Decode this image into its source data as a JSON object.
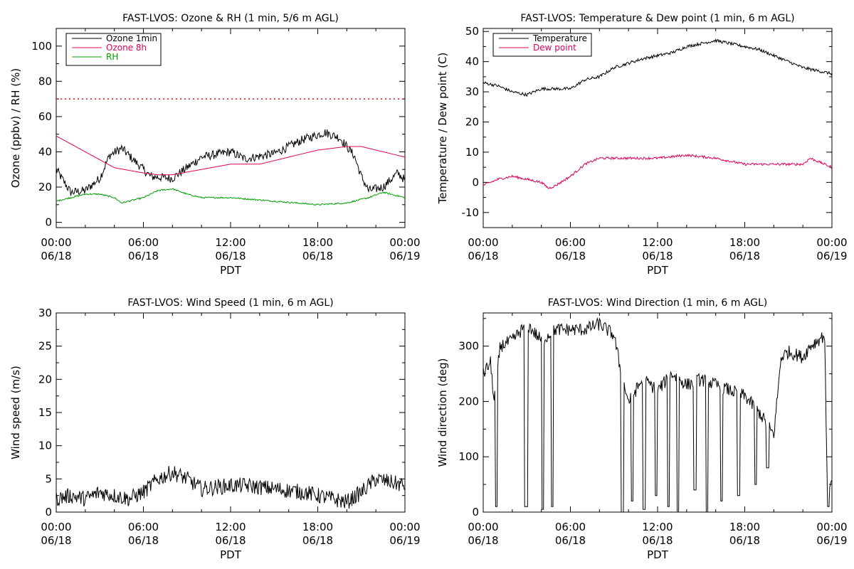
{
  "chart_data": [
    {
      "type": "line",
      "title": "FAST-LVOS: Ozone & RH (1 min, 5/6 m AGL)",
      "xlabel": "PDT",
      "ylabel": "Ozone (ppbv) / RH (%)",
      "x_ticks": [
        {
          "time": "00:00",
          "date": "06/18"
        },
        {
          "time": "06:00",
          "date": "06/18"
        },
        {
          "time": "12:00",
          "date": "06/18"
        },
        {
          "time": "18:00",
          "date": "06/18"
        },
        {
          "time": "00:00",
          "date": "06/19"
        }
      ],
      "xlim": [
        "06/18 00:00",
        "06/19 00:00"
      ],
      "ylim": [
        -3,
        110
      ],
      "y_ticks": [
        0,
        20,
        40,
        60,
        80,
        100
      ],
      "legend_position": "top-left",
      "reference_lines": [
        {
          "y": 70,
          "color": "#ff0000",
          "style": "dotted"
        }
      ],
      "series": [
        {
          "name": "Ozone 1min",
          "color": "#000000",
          "noise": 2.5,
          "points": [
            [
              "06/18 00:00",
              30
            ],
            [
              "06/18 01:00",
              17
            ],
            [
              "06/18 02:00",
              18
            ],
            [
              "06/18 03:00",
              25
            ],
            [
              "06/18 03:40",
              38
            ],
            [
              "06/18 04:30",
              42
            ],
            [
              "06/18 05:30",
              34
            ],
            [
              "06/18 06:30",
              26
            ],
            [
              "06/18 08:00",
              25
            ],
            [
              "06/18 09:00",
              31
            ],
            [
              "06/18 10:00",
              37
            ],
            [
              "06/18 12:00",
              40
            ],
            [
              "06/18 13:00",
              36
            ],
            [
              "06/18 15:00",
              39
            ],
            [
              "06/18 17:00",
              47
            ],
            [
              "06/18 18:30",
              51
            ],
            [
              "06/18 19:30",
              48
            ],
            [
              "06/18 20:30",
              38
            ],
            [
              "06/18 21:00",
              26
            ],
            [
              "06/18 21:30",
              18
            ],
            [
              "06/18 22:30",
              20
            ],
            [
              "06/18 23:30",
              28
            ],
            [
              "06/19 00:00",
              24
            ]
          ]
        },
        {
          "name": "Ozone 8h",
          "color": "#e0005a",
          "noise": 0,
          "points": [
            [
              "06/18 00:00",
              49
            ],
            [
              "06/18 02:00",
              40
            ],
            [
              "06/18 04:00",
              31
            ],
            [
              "06/18 06:00",
              28
            ],
            [
              "06/18 07:00",
              27
            ],
            [
              "06/18 08:00",
              27
            ],
            [
              "06/18 10:00",
              30
            ],
            [
              "06/18 12:00",
              33
            ],
            [
              "06/18 14:00",
              33
            ],
            [
              "06/18 16:00",
              37
            ],
            [
              "06/18 18:00",
              41
            ],
            [
              "06/18 20:00",
              43
            ],
            [
              "06/18 21:00",
              43
            ],
            [
              "06/18 22:00",
              41
            ],
            [
              "06/18 23:00",
              39
            ],
            [
              "06/19 00:00",
              37
            ]
          ]
        },
        {
          "name": "RH",
          "color": "#00a000",
          "noise": 0.4,
          "points": [
            [
              "06/18 00:00",
              12
            ],
            [
              "06/18 01:00",
              14
            ],
            [
              "06/18 02:00",
              16
            ],
            [
              "06/18 03:00",
              16
            ],
            [
              "06/18 04:00",
              14
            ],
            [
              "06/18 04:30",
              11
            ],
            [
              "06/18 06:00",
              14
            ],
            [
              "06/18 07:00",
              18
            ],
            [
              "06/18 08:00",
              19
            ],
            [
              "06/18 09:00",
              16
            ],
            [
              "06/18 10:00",
              14
            ],
            [
              "06/18 12:00",
              14
            ],
            [
              "06/18 15:00",
              12
            ],
            [
              "06/18 18:00",
              10
            ],
            [
              "06/18 20:00",
              11
            ],
            [
              "06/18 21:30",
              14
            ],
            [
              "06/18 22:30",
              17
            ],
            [
              "06/18 23:30",
              15
            ],
            [
              "06/19 00:00",
              14
            ]
          ]
        }
      ]
    },
    {
      "type": "line",
      "title": "FAST-LVOS: Temperature & Dew point (1 min, 6 m AGL)",
      "xlabel": "PDT",
      "ylabel": "Temperature / Dew point (C)",
      "x_ticks": [
        {
          "time": "00:00",
          "date": "06/18"
        },
        {
          "time": "06:00",
          "date": "06/18"
        },
        {
          "time": "12:00",
          "date": "06/18"
        },
        {
          "time": "18:00",
          "date": "06/18"
        },
        {
          "time": "00:00",
          "date": "06/19"
        }
      ],
      "xlim": [
        "06/18 00:00",
        "06/19 00:00"
      ],
      "ylim": [
        -15,
        51
      ],
      "y_ticks": [
        -10,
        0,
        10,
        20,
        30,
        40,
        50
      ],
      "legend_position": "top-left",
      "reference_lines": [],
      "series": [
        {
          "name": "Temperature",
          "color": "#000000",
          "noise": 0.5,
          "points": [
            [
              "06/18 00:00",
              33
            ],
            [
              "06/18 01:00",
              32
            ],
            [
              "06/18 02:00",
              30
            ],
            [
              "06/18 03:00",
              29
            ],
            [
              "06/18 04:00",
              31
            ],
            [
              "06/18 05:00",
              31
            ],
            [
              "06/18 06:00",
              31
            ],
            [
              "06/18 07:00",
              34
            ],
            [
              "06/18 08:00",
              35
            ],
            [
              "06/18 09:00",
              38
            ],
            [
              "06/18 11:00",
              41
            ],
            [
              "06/18 12:00",
              42
            ],
            [
              "06/18 13:00",
              43
            ],
            [
              "06/18 14:00",
              45
            ],
            [
              "06/18 15:00",
              46
            ],
            [
              "06/18 16:00",
              47
            ],
            [
              "06/18 17:00",
              46
            ],
            [
              "06/18 18:00",
              45
            ],
            [
              "06/18 19:00",
              44
            ],
            [
              "06/18 20:00",
              42
            ],
            [
              "06/18 21:00",
              40
            ],
            [
              "06/18 22:00",
              38
            ],
            [
              "06/18 23:00",
              37
            ],
            [
              "06/19 00:00",
              36
            ]
          ]
        },
        {
          "name": "Dew point",
          "color": "#e0005a",
          "noise": 0.4,
          "points": [
            [
              "06/18 00:00",
              -1
            ],
            [
              "06/18 01:00",
              1
            ],
            [
              "06/18 02:00",
              2
            ],
            [
              "06/18 03:00",
              1
            ],
            [
              "06/18 04:00",
              0
            ],
            [
              "06/18 04:30",
              -2
            ],
            [
              "06/18 05:00",
              -1
            ],
            [
              "06/18 06:00",
              2
            ],
            [
              "06/18 07:00",
              6
            ],
            [
              "06/18 08:00",
              8
            ],
            [
              "06/18 10:00",
              8
            ],
            [
              "06/18 12:00",
              8
            ],
            [
              "06/18 14:00",
              9
            ],
            [
              "06/18 16:00",
              8
            ],
            [
              "06/18 18:00",
              6
            ],
            [
              "06/18 20:00",
              6
            ],
            [
              "06/18 22:00",
              6
            ],
            [
              "06/18 22:30",
              8
            ],
            [
              "06/18 23:00",
              7
            ],
            [
              "06/19 00:00",
              5
            ]
          ]
        }
      ]
    },
    {
      "type": "line",
      "title": "FAST-LVOS: Wind Speed (1 min, 6 m AGL)",
      "xlabel": "PDT",
      "ylabel": "Wind speed (m/s)",
      "x_ticks": [
        {
          "time": "00:00",
          "date": "06/18"
        },
        {
          "time": "06:00",
          "date": "06/18"
        },
        {
          "time": "12:00",
          "date": "06/18"
        },
        {
          "time": "18:00",
          "date": "06/18"
        },
        {
          "time": "00:00",
          "date": "06/19"
        }
      ],
      "xlim": [
        "06/18 00:00",
        "06/19 00:00"
      ],
      "ylim": [
        0,
        30
      ],
      "y_ticks": [
        0,
        5,
        10,
        15,
        20,
        25,
        30
      ],
      "legend_position": "none",
      "reference_lines": [],
      "series": [
        {
          "name": "",
          "color": "#000000",
          "noise": 1.2,
          "floor": 0,
          "points": [
            [
              "06/18 00:00",
              2
            ],
            [
              "06/18 01:00",
              2.5
            ],
            [
              "06/18 02:00",
              2
            ],
            [
              "06/18 03:00",
              3
            ],
            [
              "06/18 04:00",
              2.5
            ],
            [
              "06/18 05:00",
              2
            ],
            [
              "06/18 06:00",
              3
            ],
            [
              "06/18 07:00",
              5
            ],
            [
              "06/18 08:00",
              6
            ],
            [
              "06/18 09:00",
              5
            ],
            [
              "06/18 10:00",
              3.5
            ],
            [
              "06/18 12:00",
              4
            ],
            [
              "06/18 13:00",
              4
            ],
            [
              "06/18 15:00",
              3.5
            ],
            [
              "06/18 17:00",
              3
            ],
            [
              "06/18 19:00",
              2
            ],
            [
              "06/18 20:00",
              1.5
            ],
            [
              "06/18 21:00",
              3
            ],
            [
              "06/18 22:00",
              5
            ],
            [
              "06/18 23:00",
              4.5
            ],
            [
              "06/19 00:00",
              4
            ]
          ]
        }
      ]
    },
    {
      "type": "line",
      "title": "FAST-LVOS: Wind Direction (1 min, 6 m AGL)",
      "xlabel": "PDT",
      "ylabel": "Wind direction (deg)",
      "x_ticks": [
        {
          "time": "00:00",
          "date": "06/18"
        },
        {
          "time": "06:00",
          "date": "06/18"
        },
        {
          "time": "12:00",
          "date": "06/18"
        },
        {
          "time": "18:00",
          "date": "06/18"
        },
        {
          "time": "00:00",
          "date": "06/19"
        }
      ],
      "xlim": [
        "06/18 00:00",
        "06/19 00:00"
      ],
      "ylim": [
        0,
        360
      ],
      "y_ticks": [
        0,
        100,
        200,
        300
      ],
      "legend_position": "none",
      "reference_lines": [],
      "series": [
        {
          "name": "",
          "color": "#000000",
          "noise": 12,
          "floor": 0,
          "ceil": 360,
          "spikes": [
            {
              "from": "06/18 00:50",
              "to": "06/18 01:00",
              "value": 10
            },
            {
              "from": "06/18 02:50",
              "to": "06/18 03:05",
              "value": 10
            },
            {
              "from": "06/18 04:00",
              "to": "06/18 04:10",
              "value": 5
            },
            {
              "from": "06/18 04:40",
              "to": "06/18 04:50",
              "value": 10
            },
            {
              "from": "06/18 09:30",
              "to": "06/18 09:40",
              "value": 0
            },
            {
              "from": "06/18 10:10",
              "to": "06/18 10:20",
              "value": 20
            },
            {
              "from": "06/18 11:00",
              "to": "06/18 11:10",
              "value": 5
            },
            {
              "from": "06/18 11:50",
              "to": "06/18 12:00",
              "value": 30
            },
            {
              "from": "06/18 12:40",
              "to": "06/18 12:50",
              "value": 10
            },
            {
              "from": "06/18 13:20",
              "to": "06/18 13:30",
              "value": 0
            },
            {
              "from": "06/18 14:30",
              "to": "06/18 14:40",
              "value": 40
            },
            {
              "from": "06/18 15:20",
              "to": "06/18 15:30",
              "value": 0
            },
            {
              "from": "06/18 16:20",
              "to": "06/18 16:30",
              "value": 20
            },
            {
              "from": "06/18 17:30",
              "to": "06/18 17:40",
              "value": 30
            },
            {
              "from": "06/18 18:40",
              "to": "06/18 18:50",
              "value": 50
            },
            {
              "from": "06/18 19:30",
              "to": "06/18 19:40",
              "value": 80
            },
            {
              "from": "06/18 23:40",
              "to": "06/18 23:50",
              "value": 10
            }
          ],
          "points": [
            [
              "06/18 00:00",
              250
            ],
            [
              "06/18 00:30",
              270
            ],
            [
              "06/18 00:45",
              200
            ],
            [
              "06/18 01:10",
              300
            ],
            [
              "06/18 02:00",
              310
            ],
            [
              "06/18 03:00",
              340
            ],
            [
              "06/18 04:00",
              310
            ],
            [
              "06/18 05:00",
              330
            ],
            [
              "06/18 06:00",
              330
            ],
            [
              "06/18 07:00",
              330
            ],
            [
              "06/18 08:00",
              340
            ],
            [
              "06/18 09:00",
              320
            ],
            [
              "06/18 09:30",
              250
            ],
            [
              "06/18 10:00",
              200
            ],
            [
              "06/18 11:00",
              240
            ],
            [
              "06/18 12:00",
              220
            ],
            [
              "06/18 13:00",
              250
            ],
            [
              "06/18 14:00",
              230
            ],
            [
              "06/18 15:00",
              240
            ],
            [
              "06/18 16:00",
              230
            ],
            [
              "06/18 17:00",
              220
            ],
            [
              "06/18 18:00",
              210
            ],
            [
              "06/18 19:00",
              180
            ],
            [
              "06/18 20:00",
              140
            ],
            [
              "06/18 20:30",
              280
            ],
            [
              "06/18 21:00",
              290
            ],
            [
              "06/18 22:00",
              280
            ],
            [
              "06/18 22:30",
              300
            ],
            [
              "06/18 23:00",
              310
            ],
            [
              "06/18 23:30",
              320
            ],
            [
              "06/18 23:40",
              60
            ],
            [
              "06/19 00:00",
              50
            ]
          ]
        }
      ]
    }
  ]
}
